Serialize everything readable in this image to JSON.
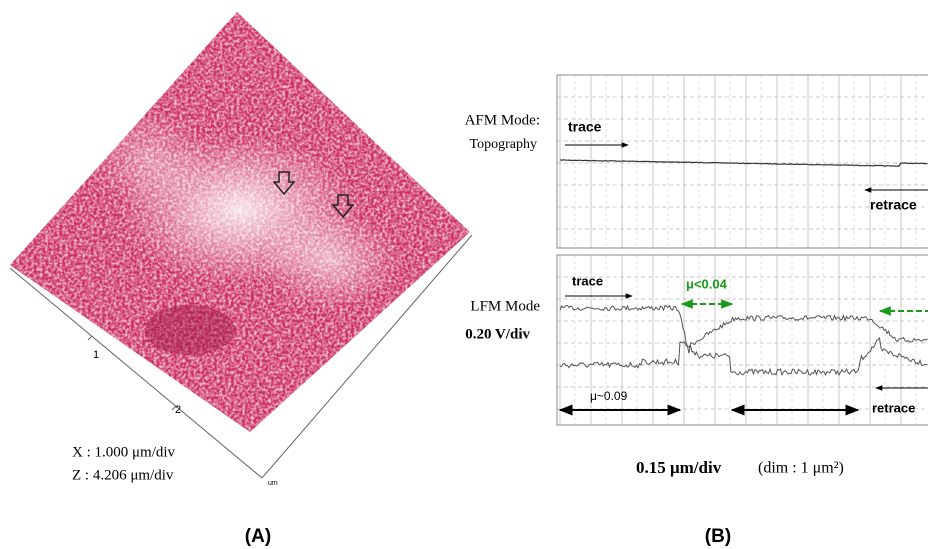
{
  "panel_a": {
    "label": "(A)",
    "axis_ticks": [
      "1",
      "2"
    ],
    "axis_unit": "um",
    "x_scale": "X : 1.000 μm/div",
    "z_scale": "Z : 4.206 μm/div"
  },
  "panel_b": {
    "label": "(B)",
    "afm": {
      "mode": "AFM Mode:",
      "signal": "Topography",
      "trace": "trace",
      "retrace": "retrace"
    },
    "lfm": {
      "mode": "LFM Mode",
      "scale": "0.20 V/div",
      "trace": "trace",
      "retrace": "retrace",
      "low_friction": "μ<0.04",
      "high_friction": "μ~0.09"
    },
    "caption_scale": "0.15 μm/div",
    "caption_dim": "(dim : 1 μm²)"
  }
}
